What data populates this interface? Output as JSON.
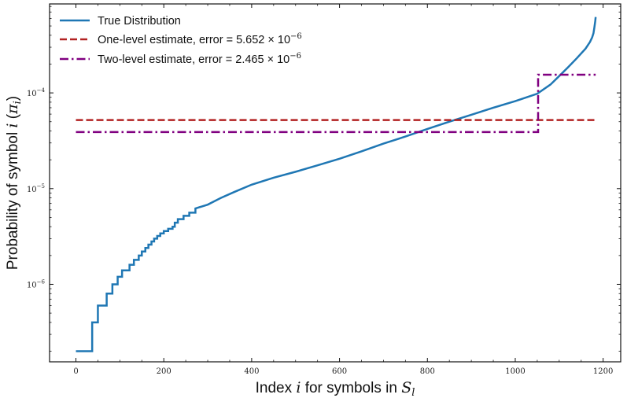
{
  "chart_data": {
    "type": "line",
    "title": "",
    "xlabel": "Index i for symbols in S_l",
    "xlabel_parts": {
      "prefix": "Index ",
      "var": "i",
      "middle": " for symbols in ",
      "set": "S",
      "sub": "l"
    },
    "ylabel": "Probability of symbol i (π_i)",
    "ylabel_parts": {
      "prefix": "Probability of symbol ",
      "var": "i",
      "paren_open": " (",
      "pi": "π",
      "sub": "i",
      "paren_close": ")"
    },
    "yscale": "log",
    "xlim": [
      -60,
      1240
    ],
    "ylim": [
      1.55e-07,
      0.00085
    ],
    "x_ticks": [
      "0",
      "200",
      "400",
      "600",
      "800",
      "1000",
      "1200"
    ],
    "x_tick_values": [
      0,
      200,
      400,
      600,
      800,
      1000,
      1200
    ],
    "y_tick_labels": [
      {
        "value": 1e-06,
        "base": "10",
        "exp": "−6"
      },
      {
        "value": 1e-05,
        "base": "10",
        "exp": "−5"
      },
      {
        "value": 0.0001,
        "base": "10",
        "exp": "−4"
      }
    ],
    "legend_position": "top-left",
    "series": [
      {
        "name": "True Distribution",
        "legend_label": "True Distribution",
        "color": "#1f77b4",
        "style": "solid",
        "step": true,
        "points": [
          [
            0,
            2e-07
          ],
          [
            37,
            2e-07
          ],
          [
            37,
            4e-07
          ],
          [
            50,
            4e-07
          ],
          [
            50,
            6e-07
          ],
          [
            70,
            6e-07
          ],
          [
            70,
            8e-07
          ],
          [
            83,
            8e-07
          ],
          [
            83,
            1e-06
          ],
          [
            95,
            1e-06
          ],
          [
            95,
            1.2e-06
          ],
          [
            105,
            1.2e-06
          ],
          [
            105,
            1.4e-06
          ],
          [
            122,
            1.4e-06
          ],
          [
            122,
            1.6e-06
          ],
          [
            132,
            1.6e-06
          ],
          [
            132,
            1.8e-06
          ],
          [
            143,
            1.8e-06
          ],
          [
            143,
            2e-06
          ],
          [
            150,
            2e-06
          ],
          [
            150,
            2.2e-06
          ],
          [
            158,
            2.2e-06
          ],
          [
            158,
            2.4e-06
          ],
          [
            165,
            2.4e-06
          ],
          [
            165,
            2.6e-06
          ],
          [
            172,
            2.6e-06
          ],
          [
            172,
            2.8e-06
          ],
          [
            178,
            2.8e-06
          ],
          [
            178,
            3e-06
          ],
          [
            185,
            3e-06
          ],
          [
            185,
            3.2e-06
          ],
          [
            192,
            3.2e-06
          ],
          [
            192,
            3.4e-06
          ],
          [
            200,
            3.4e-06
          ],
          [
            200,
            3.6e-06
          ],
          [
            210,
            3.6e-06
          ],
          [
            210,
            3.8e-06
          ],
          [
            220,
            3.8e-06
          ],
          [
            220,
            4e-06
          ],
          [
            225,
            4e-06
          ],
          [
            225,
            4.4e-06
          ],
          [
            232,
            4.4e-06
          ],
          [
            232,
            4.8e-06
          ],
          [
            245,
            4.8e-06
          ],
          [
            245,
            5.2e-06
          ],
          [
            258,
            5.2e-06
          ],
          [
            258,
            5.6e-06
          ],
          [
            272,
            5.6e-06
          ],
          [
            272,
            6.2e-06
          ],
          [
            300,
            6.8e-06
          ],
          [
            330,
            8e-06
          ],
          [
            360,
            9.2e-06
          ],
          [
            400,
            1.1e-05
          ],
          [
            450,
            1.3e-05
          ],
          [
            500,
            1.5e-05
          ],
          [
            550,
            1.75e-05
          ],
          [
            600,
            2.05e-05
          ],
          [
            650,
            2.45e-05
          ],
          [
            700,
            2.95e-05
          ],
          [
            750,
            3.5e-05
          ],
          [
            800,
            4.2e-05
          ],
          [
            850,
            5e-05
          ],
          [
            900,
            5.9e-05
          ],
          [
            950,
            7e-05
          ],
          [
            1000,
            8.2e-05
          ],
          [
            1050,
            9.8e-05
          ],
          [
            1080,
            0.000122
          ],
          [
            1100,
            0.00015
          ],
          [
            1120,
            0.000185
          ],
          [
            1140,
            0.00023
          ],
          [
            1160,
            0.00029
          ],
          [
            1170,
            0.00034
          ],
          [
            1175,
            0.00038
          ],
          [
            1178,
            0.00042
          ],
          [
            1180,
            0.00048
          ],
          [
            1182,
            0.00056
          ],
          [
            1183,
            0.00062
          ]
        ]
      },
      {
        "name": "One-level estimate",
        "legend_label": "One-level estimate, error = 5.652 × 10",
        "legend_exp": "−6",
        "color": "#b22222",
        "style": "dashed",
        "points": [
          [
            0,
            5.2e-05
          ],
          [
            1183,
            5.2e-05
          ]
        ]
      },
      {
        "name": "Two-level estimate",
        "legend_label": "Two-level estimate, error = 2.465 × 10",
        "legend_exp": "−6",
        "color": "#800080",
        "style": "dashdot",
        "points": [
          [
            0,
            3.9e-05
          ],
          [
            1052,
            3.9e-05
          ],
          [
            1052,
            0.000155
          ],
          [
            1183,
            0.000155
          ]
        ]
      }
    ]
  }
}
